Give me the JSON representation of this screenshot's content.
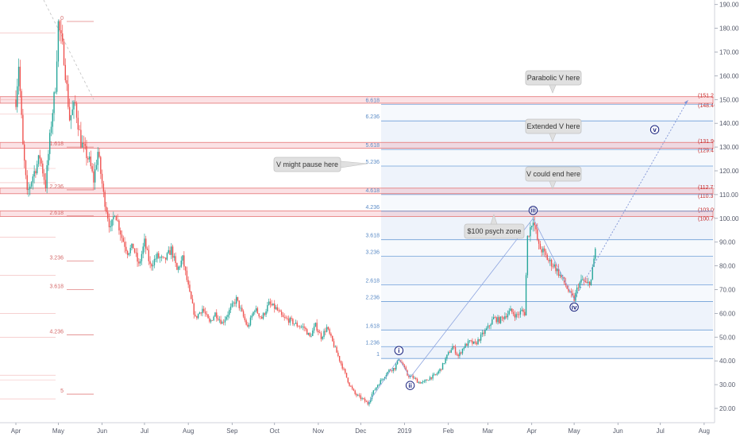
{
  "chart_data": {
    "type": "candlestick",
    "y_axis": {
      "position": "right",
      "ylim": [
        15,
        192
      ],
      "ticks": [
        20,
        30,
        40,
        50,
        60,
        70,
        80,
        90,
        100,
        110,
        120,
        130,
        140,
        150,
        160,
        170,
        180,
        190
      ],
      "tick_labels": [
        "20.00",
        "30.00",
        "40.00",
        "50.00",
        "60.00",
        "70.00",
        "80.00",
        "90.00",
        "100.00",
        "110.00",
        "120.00",
        "130.00",
        "140.00",
        "150.00",
        "160.00",
        "170.00",
        "180.00",
        "190.00"
      ]
    },
    "x_axis": {
      "ticks": [
        "Apr",
        "May",
        "Jun",
        "Jul",
        "Aug",
        "Sep",
        "Oct",
        "Nov",
        "Dec",
        "2019",
        "Feb",
        "Mar",
        "Apr",
        "May",
        "Jun",
        "Jul",
        "Aug"
      ],
      "tick_index": [
        0,
        30,
        61,
        91,
        122,
        153,
        183,
        214,
        244,
        275,
        306,
        334,
        365,
        395,
        426,
        456,
        487
      ]
    },
    "price_anchors": [
      [
        0,
        150
      ],
      [
        2,
        165
      ],
      [
        5,
        130
      ],
      [
        8,
        110
      ],
      [
        12,
        118
      ],
      [
        17,
        126
      ],
      [
        21,
        114
      ],
      [
        25,
        140
      ],
      [
        28,
        156
      ],
      [
        30,
        182
      ],
      [
        34,
        168
      ],
      [
        38,
        142
      ],
      [
        42,
        148
      ],
      [
        46,
        132
      ],
      [
        52,
        124
      ],
      [
        55,
        116
      ],
      [
        58,
        128
      ],
      [
        62,
        110
      ],
      [
        67,
        95
      ],
      [
        70,
        103
      ],
      [
        75,
        92
      ],
      [
        79,
        86
      ],
      [
        83,
        88
      ],
      [
        87,
        80
      ],
      [
        91,
        90
      ],
      [
        95,
        80
      ],
      [
        100,
        84
      ],
      [
        105,
        82
      ],
      [
        110,
        87
      ],
      [
        114,
        78
      ],
      [
        118,
        83
      ],
      [
        123,
        68
      ],
      [
        127,
        58
      ],
      [
        132,
        62
      ],
      [
        137,
        56
      ],
      [
        141,
        60
      ],
      [
        146,
        56
      ],
      [
        150,
        60
      ],
      [
        156,
        66
      ],
      [
        160,
        60
      ],
      [
        164,
        54
      ],
      [
        169,
        62
      ],
      [
        174,
        58
      ],
      [
        179,
        64
      ],
      [
        184,
        62
      ],
      [
        189,
        58
      ],
      [
        194,
        57
      ],
      [
        199,
        55
      ],
      [
        204,
        54
      ],
      [
        208,
        50
      ],
      [
        212,
        55
      ],
      [
        216,
        50
      ],
      [
        220,
        54
      ],
      [
        224,
        48
      ],
      [
        228,
        42
      ],
      [
        232,
        36
      ],
      [
        236,
        30
      ],
      [
        240,
        26
      ],
      [
        245,
        24
      ],
      [
        249,
        22
      ],
      [
        252,
        26
      ],
      [
        256,
        30
      ],
      [
        260,
        33
      ],
      [
        264,
        36
      ],
      [
        268,
        37
      ],
      [
        271,
        41
      ],
      [
        274,
        38
      ],
      [
        277,
        34
      ],
      [
        281,
        33
      ],
      [
        285,
        31
      ],
      [
        289,
        31
      ],
      [
        293,
        33
      ],
      [
        297,
        34
      ],
      [
        301,
        37
      ],
      [
        305,
        42
      ],
      [
        309,
        46
      ],
      [
        313,
        42
      ],
      [
        317,
        46
      ],
      [
        321,
        48
      ],
      [
        325,
        47
      ],
      [
        330,
        51
      ],
      [
        334,
        54
      ],
      [
        338,
        58
      ],
      [
        342,
        57
      ],
      [
        346,
        59
      ],
      [
        350,
        61
      ],
      [
        354,
        59
      ],
      [
        358,
        61
      ],
      [
        360,
        60
      ],
      [
        362,
        92
      ],
      [
        364,
        96
      ],
      [
        366,
        100
      ],
      [
        368,
        94
      ],
      [
        370,
        88
      ],
      [
        373,
        86
      ],
      [
        377,
        82
      ],
      [
        381,
        80
      ],
      [
        385,
        76
      ],
      [
        389,
        72
      ],
      [
        392,
        68
      ],
      [
        395,
        66
      ],
      [
        398,
        72
      ],
      [
        401,
        74
      ],
      [
        404,
        72
      ],
      [
        407,
        74
      ],
      [
        410,
        87
      ]
    ],
    "left_fib": {
      "origin_label": "0",
      "lines": [
        {
          "label": "1.618",
          "value": 130
        },
        {
          "label": "2.236",
          "value": 112
        },
        {
          "label": "2.618",
          "value": 101
        },
        {
          "label": "3.236",
          "value": 82
        },
        {
          "label": "3.618",
          "value": 70
        },
        {
          "label": "4.236",
          "value": 51
        },
        {
          "label": "5",
          "value": 26
        }
      ]
    },
    "right_fib": {
      "lines": [
        {
          "label": "1",
          "value": 41
        },
        {
          "label": "1.236",
          "value": 46
        },
        {
          "label": "1.618",
          "value": 53
        },
        {
          "label": "2.236",
          "value": 65
        },
        {
          "label": "2.618",
          "value": 72
        },
        {
          "label": "3.236",
          "value": 84
        },
        {
          "label": "3.618",
          "value": 91
        },
        {
          "label": "4.236",
          "value": 103
        },
        {
          "label": "4.618",
          "value": 110
        },
        {
          "label": "5.236",
          "value": 122
        },
        {
          "label": "5.618",
          "value": 129
        },
        {
          "label": "6.236",
          "value": 141
        },
        {
          "label": "6.618",
          "value": 148
        }
      ]
    },
    "zones": [
      {
        "hi_label": "(151.21)",
        "lo_label": "(148.46)",
        "hi": 151.21,
        "lo": 148.46
      },
      {
        "hi_label": "(131.96)",
        "lo_label": "(129.47)",
        "hi": 131.96,
        "lo": 129.47
      },
      {
        "hi_label": "(112.71)",
        "lo_label": "(110.37)",
        "hi": 112.71,
        "lo": 110.37
      },
      {
        "hi_label": "(103.09)",
        "lo_label": "(100.79)",
        "hi": 103.09,
        "lo": 100.79
      }
    ],
    "waves": [
      {
        "label": "i",
        "index": 271,
        "value": 41,
        "pos": "above"
      },
      {
        "label": "ii",
        "index": 279,
        "value": 33,
        "pos": "below"
      },
      {
        "label": "iii",
        "index": 366,
        "value": 100,
        "pos": "above"
      },
      {
        "label": "iv",
        "index": 395,
        "value": 66,
        "pos": "below"
      },
      {
        "label": "v",
        "index": 452,
        "value": 134,
        "pos": "above"
      }
    ],
    "callouts": [
      {
        "text": "Parabolic V here"
      },
      {
        "text": "Extended V here"
      },
      {
        "text": "V might pause here"
      },
      {
        "text": "V could end here"
      },
      {
        "text": "$100 psych zone"
      }
    ]
  }
}
